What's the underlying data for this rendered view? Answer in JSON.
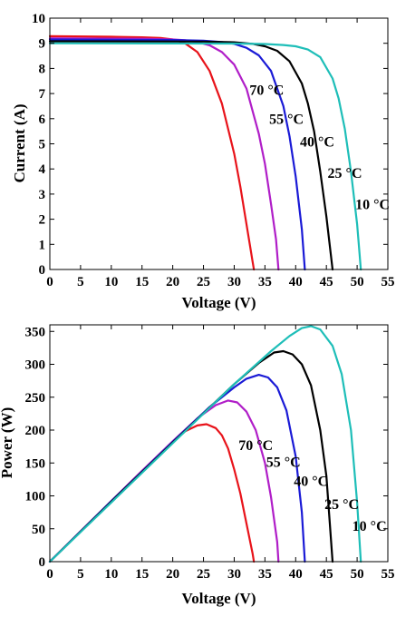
{
  "chart_data": [
    {
      "type": "line",
      "xlabel": "Voltage (V)",
      "ylabel": "Current (A)",
      "xlim": [
        0,
        55
      ],
      "ylim": [
        0,
        10
      ],
      "xticks": [
        0,
        5,
        10,
        15,
        20,
        25,
        30,
        35,
        40,
        45,
        50,
        55
      ],
      "yticks": [
        0,
        1,
        2,
        3,
        4,
        5,
        6,
        7,
        8,
        9,
        10
      ],
      "grid": false,
      "series": [
        {
          "name": "70 °C",
          "color": "#e8131a",
          "x": [
            0,
            10,
            15,
            18,
            20,
            22,
            24,
            26,
            28,
            30,
            31,
            32,
            32.6,
            33.0,
            33.2
          ],
          "y": [
            9.28,
            9.26,
            9.24,
            9.21,
            9.15,
            9.0,
            8.65,
            7.9,
            6.6,
            4.6,
            3.3,
            1.8,
            0.9,
            0.3,
            0
          ]
        },
        {
          "name": "55 °C",
          "color": "#b01ec8",
          "x": [
            0,
            15,
            20,
            22,
            24,
            26,
            28,
            30,
            32,
            34,
            35,
            36,
            36.8,
            37.2
          ],
          "y": [
            9.2,
            9.18,
            9.15,
            9.12,
            9.05,
            8.92,
            8.65,
            8.15,
            7.2,
            5.4,
            4.2,
            2.6,
            1.2,
            0
          ]
        },
        {
          "name": "40 °C",
          "color": "#1a1ad6",
          "x": [
            0,
            20,
            25,
            28,
            30,
            32,
            34,
            36,
            38,
            39,
            40,
            41,
            41.5
          ],
          "y": [
            9.15,
            9.13,
            9.1,
            9.05,
            8.98,
            8.82,
            8.52,
            7.9,
            6.5,
            5.3,
            3.7,
            1.6,
            0
          ]
        },
        {
          "name": "25 °C",
          "color": "#000000",
          "x": [
            0,
            25,
            30,
            33,
            35,
            37,
            39,
            41,
            42,
            43,
            44,
            45,
            46
          ],
          "y": [
            9.08,
            9.07,
            9.04,
            8.98,
            8.88,
            8.7,
            8.28,
            7.4,
            6.6,
            5.5,
            3.9,
            2.1,
            0
          ]
        },
        {
          "name": "10 °C",
          "color": "#1ebeb8",
          "x": [
            0,
            30,
            35,
            38,
            40,
            42,
            44,
            46,
            47,
            48,
            49,
            50,
            50.6
          ],
          "y": [
            9.0,
            8.99,
            8.97,
            8.93,
            8.88,
            8.75,
            8.45,
            7.6,
            6.8,
            5.6,
            3.9,
            1.8,
            0
          ]
        }
      ],
      "annotations": [
        {
          "text": "70 °C",
          "x": 35.3,
          "y": 6.95
        },
        {
          "text": "55 °C",
          "x": 38.5,
          "y": 5.8
        },
        {
          "text": "40 °C",
          "x": 43.5,
          "y": 4.9
        },
        {
          "text": "25 °C",
          "x": 48.0,
          "y": 3.65
        },
        {
          "text": "10 °C",
          "x": 52.5,
          "y": 2.4
        }
      ]
    },
    {
      "type": "line",
      "xlabel": "Voltage (V)",
      "ylabel": "Power (W)",
      "xlim": [
        0,
        55
      ],
      "ylim": [
        0,
        360
      ],
      "xticks": [
        0,
        5,
        10,
        15,
        20,
        25,
        30,
        35,
        40,
        45,
        50,
        55
      ],
      "yticks": [
        0,
        50,
        100,
        150,
        200,
        250,
        300,
        350
      ],
      "grid": false,
      "series": [
        {
          "name": "70 °C",
          "color": "#e8131a",
          "x": [
            0,
            5,
            10,
            15,
            20,
            22,
            24,
            25.5,
            27,
            28,
            29,
            30,
            31,
            32,
            33,
            33.2
          ],
          "y": [
            0,
            46,
            92,
            138,
            182,
            198,
            207,
            209,
            203,
            192,
            172,
            140,
            104,
            58,
            12,
            0
          ]
        },
        {
          "name": "55 °C",
          "color": "#b01ec8",
          "x": [
            0,
            5,
            10,
            15,
            20,
            24,
            27,
            29,
            30.5,
            32,
            33.5,
            35,
            36,
            37,
            37.2
          ],
          "y": [
            0,
            46,
            92,
            138,
            183,
            218,
            238,
            245,
            242,
            228,
            200,
            150,
            98,
            30,
            0
          ]
        },
        {
          "name": "40 °C",
          "color": "#1a1ad6",
          "x": [
            0,
            10,
            20,
            26,
            30,
            32,
            34,
            35.5,
            37,
            38.5,
            40,
            41,
            41.5
          ],
          "y": [
            0,
            92,
            182,
            235,
            265,
            278,
            284,
            280,
            265,
            230,
            160,
            75,
            0
          ]
        },
        {
          "name": "25 °C",
          "color": "#000000",
          "x": [
            0,
            10,
            20,
            30,
            34,
            36.5,
            38,
            39.5,
            41,
            42.5,
            44,
            45,
            46
          ],
          "y": [
            0,
            91,
            181,
            270,
            302,
            318,
            320,
            315,
            300,
            268,
            200,
            130,
            0
          ]
        },
        {
          "name": "10 °C",
          "color": "#1ebeb8",
          "x": [
            0,
            10,
            20,
            30,
            36,
            39,
            41,
            42.5,
            44,
            46,
            47.5,
            49,
            50,
            50.6
          ],
          "y": [
            0,
            90,
            180,
            270,
            320,
            343,
            355,
            358,
            353,
            328,
            285,
            200,
            90,
            0
          ]
        }
      ],
      "annotations": [
        {
          "text": "70 °C",
          "x": 33.5,
          "y": 170
        },
        {
          "text": "55 °C",
          "x": 38.0,
          "y": 144
        },
        {
          "text": "40 °C",
          "x": 42.5,
          "y": 115
        },
        {
          "text": "25 °C",
          "x": 47.5,
          "y": 80
        },
        {
          "text": "10 °C",
          "x": 52.0,
          "y": 47
        }
      ]
    }
  ]
}
